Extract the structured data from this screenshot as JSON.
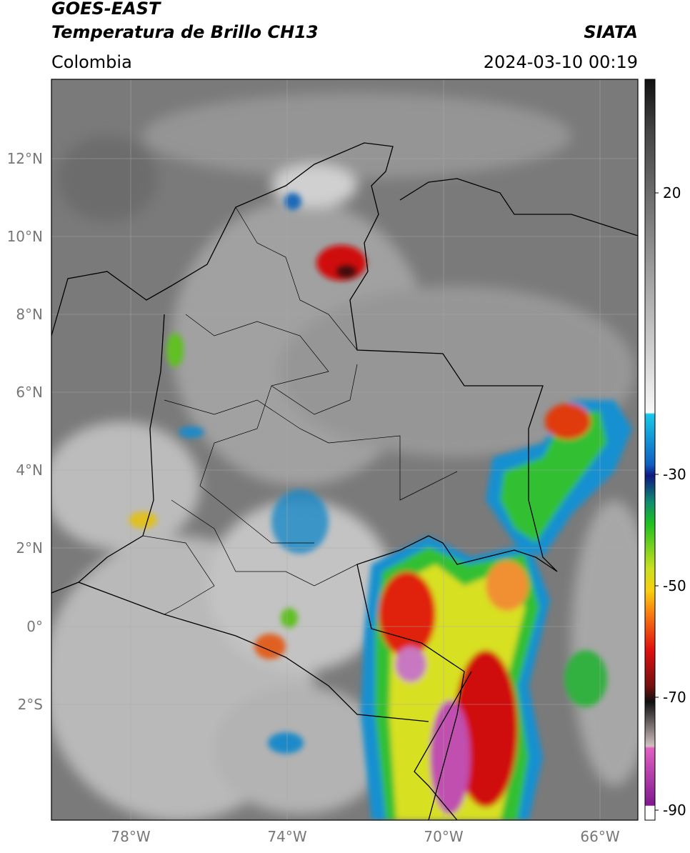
{
  "header": {
    "title": "GOES-EAST",
    "subtitle": "Temperatura de Brillo CH13",
    "source": "SIATA",
    "region": "Colombia",
    "timestamp": "2024-03-10 00:19"
  },
  "map": {
    "lat_labels": [
      "12°N",
      "10°N",
      "8°N",
      "6°N",
      "4°N",
      "2°N",
      "0°",
      "2°S"
    ],
    "lon_labels": [
      "78°W",
      "74°W",
      "70°W",
      "66°W"
    ]
  },
  "colorbar": {
    "labels": [
      "20",
      "-30",
      "-50",
      "-70",
      "-90"
    ]
  }
}
